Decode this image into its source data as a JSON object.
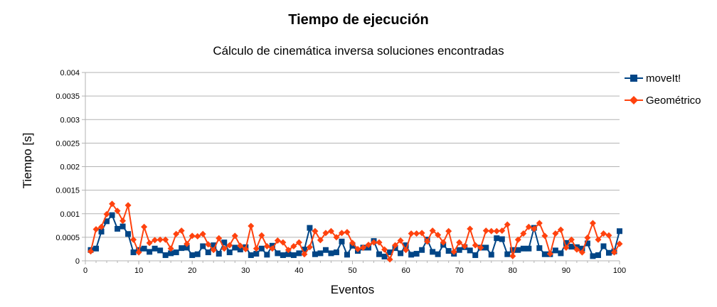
{
  "chart_data": {
    "type": "line",
    "title": "Tiempo de ejecución",
    "subtitle": "Cálculo de cinemática inversa soluciones encontradas",
    "xlabel": "Eventos",
    "ylabel": "Tiempo [s]",
    "xlim": [
      0,
      100
    ],
    "ylim": [
      0,
      0.004
    ],
    "x_ticks": [
      "0",
      "10",
      "20",
      "30",
      "40",
      "50",
      "60",
      "70",
      "80",
      "90",
      "100"
    ],
    "y_ticks": [
      "0",
      "0.0005",
      "0.001",
      "0.0015",
      "0.002",
      "0.0025",
      "0.003",
      "0.0035",
      "0.004"
    ],
    "grid": "horizontal",
    "legend_position": "right",
    "series": [
      {
        "name": "moveIt!",
        "color": "#004586",
        "marker": "square",
        "x": [
          1,
          2,
          3,
          4,
          5,
          6,
          7,
          8,
          9,
          10,
          11,
          12,
          13,
          14,
          15,
          16,
          17,
          18,
          19,
          20,
          21,
          22,
          23,
          24,
          25,
          26,
          27,
          28,
          29,
          30,
          31,
          32,
          33,
          34,
          35,
          36,
          37,
          38,
          39,
          40,
          41,
          42,
          43,
          44,
          45,
          46,
          47,
          48,
          49,
          50,
          51,
          52,
          53,
          54,
          55,
          56,
          57,
          58,
          59,
          60,
          61,
          62,
          63,
          64,
          65,
          66,
          67,
          68,
          69,
          70,
          71,
          72,
          73,
          74,
          75,
          76,
          77,
          78,
          79,
          80,
          81,
          82,
          83,
          84,
          85,
          86,
          87,
          88,
          89,
          90,
          91,
          92,
          93,
          94,
          95,
          96,
          97,
          98,
          99,
          100
        ],
        "values": [
          0.00023,
          0.00026,
          0.00062,
          0.00084,
          0.00097,
          0.00068,
          0.00073,
          0.00057,
          0.00018,
          0.00023,
          0.00026,
          0.00019,
          0.00026,
          0.00022,
          0.00012,
          0.00016,
          0.00018,
          0.00027,
          0.00028,
          0.00012,
          0.00014,
          0.00031,
          0.00018,
          0.00033,
          0.00015,
          0.00039,
          0.00018,
          0.00028,
          0.00024,
          0.00029,
          0.00012,
          0.00015,
          0.00026,
          0.00013,
          0.00032,
          0.00016,
          0.00012,
          0.00014,
          0.00012,
          0.00016,
          0.00024,
          0.0007,
          0.00014,
          0.00016,
          0.00023,
          0.00016,
          0.00018,
          0.00041,
          0.00013,
          0.00032,
          0.00021,
          0.00028,
          0.00028,
          0.00042,
          0.00014,
          9e-05,
          0.00018,
          0.00027,
          0.00016,
          0.00033,
          0.00013,
          0.00015,
          0.00023,
          0.00045,
          0.00019,
          0.00014,
          0.00034,
          0.00021,
          0.00015,
          0.00023,
          0.00029,
          0.00022,
          0.00012,
          0.00028,
          0.00028,
          0.00013,
          0.00048,
          0.00046,
          0.00014,
          0.00023,
          0.00023,
          0.00026,
          0.00026,
          0.0007,
          0.00027,
          0.00014,
          0.00014,
          0.00022,
          0.00016,
          0.00038,
          0.0003,
          0.00029,
          0.00026,
          0.00037,
          0.0001,
          0.00012,
          0.00031,
          0.00017,
          0.0002,
          0.00063
        ]
      },
      {
        "name": "Geométrico",
        "color": "#ff420e",
        "marker": "diamond",
        "x": [
          1,
          2,
          3,
          4,
          5,
          6,
          7,
          8,
          9,
          10,
          11,
          12,
          13,
          14,
          15,
          16,
          17,
          18,
          19,
          20,
          21,
          22,
          23,
          24,
          25,
          26,
          27,
          28,
          29,
          30,
          31,
          32,
          33,
          34,
          35,
          36,
          37,
          38,
          39,
          40,
          41,
          42,
          43,
          44,
          45,
          46,
          47,
          48,
          49,
          50,
          51,
          52,
          53,
          54,
          55,
          56,
          57,
          58,
          59,
          60,
          61,
          62,
          63,
          64,
          65,
          66,
          67,
          68,
          69,
          70,
          71,
          72,
          73,
          74,
          75,
          76,
          77,
          78,
          79,
          80,
          81,
          82,
          83,
          84,
          85,
          86,
          87,
          88,
          89,
          90,
          91,
          92,
          93,
          94,
          95,
          96,
          97,
          98,
          99,
          100
        ],
        "values": [
          0.0002,
          0.00067,
          0.00072,
          0.00099,
          0.00121,
          0.00106,
          0.00085,
          0.00118,
          0.00045,
          0.00018,
          0.00072,
          0.00038,
          0.00044,
          0.00045,
          0.00045,
          0.00026,
          0.00057,
          0.00064,
          0.00036,
          0.00053,
          0.00052,
          0.00057,
          0.00035,
          0.00023,
          0.00048,
          0.00026,
          0.00033,
          0.00053,
          0.00032,
          0.00025,
          0.00074,
          0.00026,
          0.00054,
          0.00031,
          0.00026,
          0.00043,
          0.00039,
          0.00023,
          0.00031,
          0.00039,
          0.00014,
          0.00029,
          0.00063,
          0.00044,
          0.00059,
          0.00063,
          0.0005,
          0.00059,
          0.00061,
          0.00038,
          0.00025,
          0.00028,
          0.00034,
          0.00039,
          0.00039,
          0.00024,
          3e-05,
          0.00033,
          0.00043,
          0.00023,
          0.00058,
          0.00058,
          0.00059,
          0.00041,
          0.00064,
          0.00055,
          0.00039,
          0.00063,
          0.00019,
          0.00039,
          0.00031,
          0.00068,
          0.00033,
          0.00028,
          0.00064,
          0.00063,
          0.00063,
          0.00064,
          0.00077,
          0.0001,
          0.00045,
          0.00058,
          0.00072,
          0.00068,
          0.0008,
          0.00053,
          0.00015,
          0.00058,
          0.00066,
          0.00028,
          0.00045,
          0.00024,
          0.00018,
          0.00049,
          0.0008,
          0.00045,
          0.00058,
          0.00054,
          0.00018,
          0.00036
        ]
      }
    ]
  }
}
